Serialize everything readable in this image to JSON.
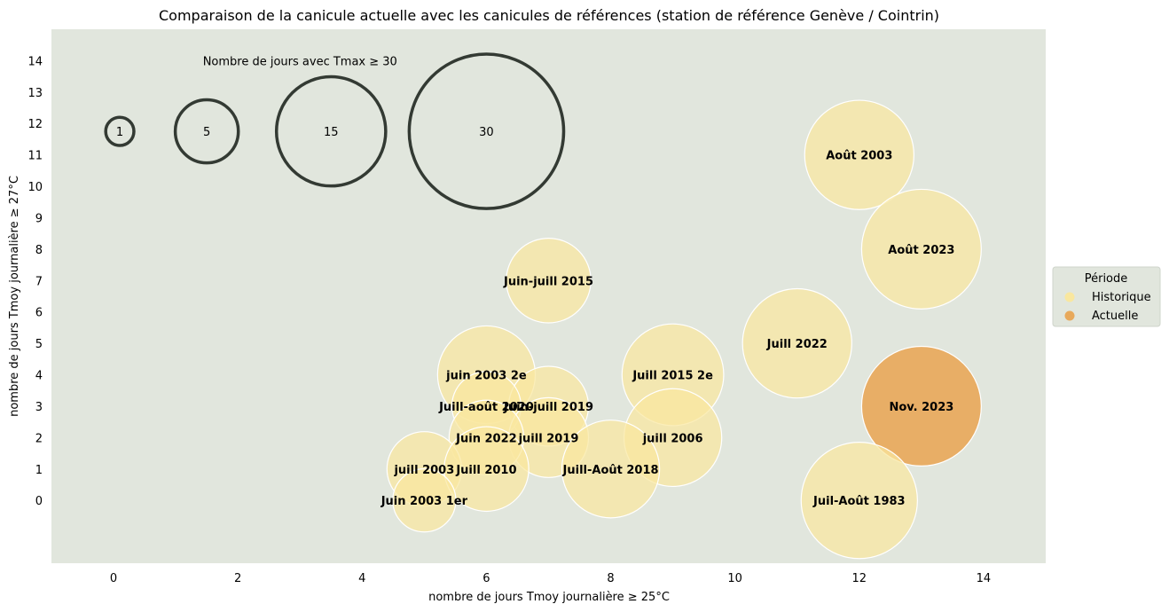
{
  "chart_data": {
    "type": "scatter",
    "title": "Comparaison de la canicule actuelle avec les canicules de références (station de référence Genève / Cointrin)",
    "xlabel": "nombre de jours Tmoy journalière ≥ 25°C",
    "ylabel": "nombre de jours Tmoy journalière ≥ 27°C",
    "xlim": [
      -1,
      15
    ],
    "ylim": [
      -2,
      15
    ],
    "xticks": [
      0,
      2,
      4,
      6,
      8,
      10,
      12,
      14
    ],
    "yticks": [
      0,
      1,
      2,
      3,
      4,
      5,
      6,
      7,
      8,
      9,
      10,
      11,
      12,
      13,
      14
    ],
    "grid": false,
    "size_variable": "Nombre de jours avec Tmax ≥ 30",
    "size_legend": [
      {
        "label": "1",
        "x": 0.1,
        "y": 11.75,
        "size": 1
      },
      {
        "label": "5",
        "x": 1.5,
        "y": 11.75,
        "size": 5
      },
      {
        "label": "15",
        "x": 3.5,
        "y": 11.75,
        "size": 15
      },
      {
        "label": "30",
        "x": 6.0,
        "y": 11.75,
        "size": 30
      }
    ],
    "legend": {
      "title": "Période",
      "placement": "right",
      "entries": [
        {
          "name": "Historique",
          "color": "#f9e79f"
        },
        {
          "name": "Actuelle",
          "color": "#e8a95b"
        }
      ]
    },
    "points": [
      {
        "label": "Août 2003",
        "x": 12,
        "y": 11,
        "size": 15,
        "period": "Historique"
      },
      {
        "label": "Août 2023",
        "x": 13,
        "y": 8,
        "size": 18,
        "period": "Historique"
      },
      {
        "label": "Juin-juill 2015",
        "x": 7,
        "y": 7,
        "size": 9,
        "period": "Historique"
      },
      {
        "label": "Juill 2022",
        "x": 11,
        "y": 5,
        "size": 15,
        "period": "Historique"
      },
      {
        "label": "juin 2003 2e",
        "x": 6,
        "y": 4,
        "size": 12,
        "period": "Historique"
      },
      {
        "label": "Juill 2015 2e",
        "x": 9,
        "y": 4,
        "size": 13,
        "period": "Historique"
      },
      {
        "label": "Nov. 2023",
        "x": 13,
        "y": 3,
        "size": 18,
        "period": "Actuelle"
      },
      {
        "label": "Juin-juill 2019",
        "x": 7,
        "y": 3,
        "size": 8,
        "period": "Historique"
      },
      {
        "label": "Juill-août 2020",
        "x": 6,
        "y": 3,
        "size": 6,
        "period": "Historique"
      },
      {
        "label": "juill 2019",
        "x": 7,
        "y": 2,
        "size": 8,
        "period": "Historique"
      },
      {
        "label": "juill 2006",
        "x": 9,
        "y": 2,
        "size": 12,
        "period": "Historique"
      },
      {
        "label": "Juin 2022",
        "x": 6,
        "y": 2,
        "size": 7,
        "period": "Historique"
      },
      {
        "label": "juill 2003",
        "x": 5,
        "y": 1,
        "size": 7,
        "period": "Historique"
      },
      {
        "label": "Juill-Août 2018",
        "x": 8,
        "y": 1,
        "size": 12,
        "period": "Historique"
      },
      {
        "label": "Juill 2010",
        "x": 6,
        "y": 1,
        "size": 9,
        "period": "Historique"
      },
      {
        "label": "Juin 2003 1er",
        "x": 5,
        "y": 0,
        "size": 5,
        "period": "Historique"
      },
      {
        "label": "Juil-Août 1983",
        "x": 12,
        "y": 0,
        "size": 17,
        "period": "Historique"
      }
    ]
  },
  "colors": {
    "plot_background": "#e1e6dd",
    "historique": "#f9e79f",
    "actuelle": "#e8a95b",
    "size_ring": "#333a33"
  }
}
